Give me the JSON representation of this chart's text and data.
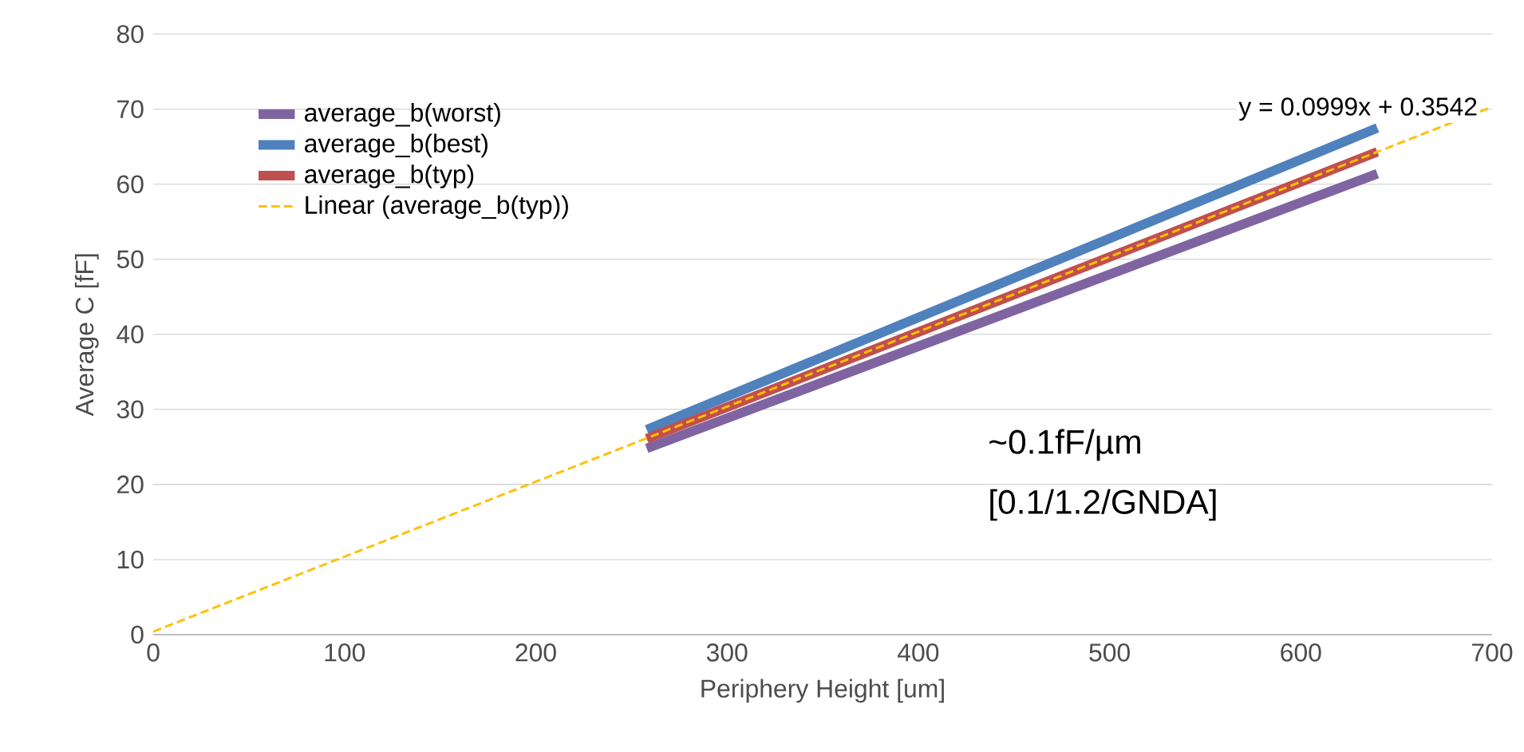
{
  "chart_data": {
    "type": "line",
    "xlabel": "Periphery Height [um]",
    "ylabel": "Average C [fF]",
    "x": [
      258,
      640
    ],
    "series": [
      {
        "name": "average_b(worst)",
        "color": "#8064a2",
        "values": [
          24.8,
          61.4
        ]
      },
      {
        "name": "average_b(best)",
        "color": "#4f81bd",
        "values": [
          27.3,
          67.5
        ]
      },
      {
        "name": "average_b(typ)",
        "color": "#c0504d",
        "values": [
          26.1,
          64.3
        ]
      },
      {
        "name": "Linear (average_b(typ))",
        "color": "#ffc000",
        "x": [
          0,
          700
        ],
        "values": [
          0.4,
          70.3
        ],
        "line_style": "dashed"
      }
    ],
    "xlim": [
      0,
      700
    ],
    "xticks": [
      0,
      100,
      200,
      300,
      400,
      500,
      600,
      700
    ],
    "ylim": [
      0,
      80
    ],
    "yticks": [
      0,
      10,
      20,
      30,
      40,
      50,
      60,
      70,
      80
    ],
    "grid": "y",
    "legend": "top left",
    "marker": "none",
    "annotations": [
      "y = 0.0999x + 0.3542",
      "~0.1fF/µm",
      "[0.1/1.2/GNDA]"
    ]
  }
}
